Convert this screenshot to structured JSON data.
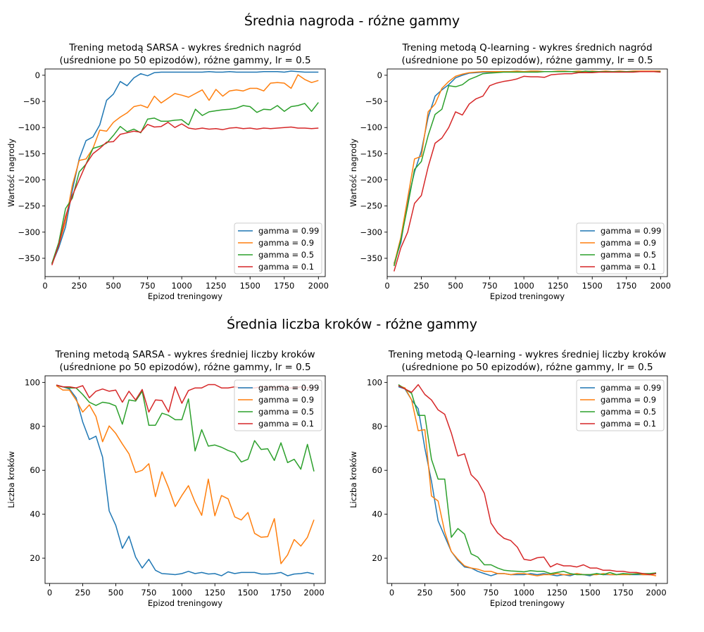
{
  "suptitles": {
    "rewards": "Średnia nagroda - różne gammy",
    "steps": "Średnia liczba kroków - różne gammy"
  },
  "chart_data": [
    {
      "type": "line",
      "title_line1": "Trening metodą SARSA - wykres średnich nagród",
      "title_line2": "(uśrednione po 50 epizodów), różne gammy, lr = 0.5",
      "xlabel": "Epizod treningowy",
      "ylabel": "Wartość nagrody",
      "xlim": [
        0,
        2050
      ],
      "ylim": [
        -385,
        12
      ],
      "xticks": [
        0,
        250,
        500,
        750,
        1000,
        1250,
        1500,
        1750,
        2000
      ],
      "yticks": [
        0,
        -50,
        -100,
        -150,
        -200,
        -250,
        -300,
        -350
      ],
      "legend": "bottom-right",
      "x": [
        50,
        100,
        150,
        200,
        250,
        300,
        350,
        400,
        450,
        500,
        550,
        600,
        650,
        700,
        750,
        800,
        850,
        900,
        950,
        1000,
        1050,
        1100,
        1150,
        1200,
        1250,
        1300,
        1350,
        1400,
        1450,
        1500,
        1550,
        1600,
        1650,
        1700,
        1750,
        1800,
        1850,
        1900,
        1950,
        2000
      ],
      "series": [
        {
          "name": "gamma = 0.99",
          "color": "#1f77b4",
          "values": [
            -361,
            -330,
            -290,
            -220,
            -160,
            -125,
            -118,
            -95,
            -48,
            -36,
            -12,
            -20,
            -5,
            3,
            -1,
            5,
            6,
            6,
            6,
            6,
            6,
            6,
            6,
            7,
            6,
            6,
            7,
            6,
            6,
            6,
            6,
            7,
            7,
            7,
            6,
            8,
            7,
            6,
            6,
            6
          ]
        },
        {
          "name": "gamma = 0.9",
          "color": "#ff7f0e",
          "values": [
            -360,
            -325,
            -280,
            -210,
            -163,
            -160,
            -140,
            -105,
            -107,
            -90,
            -80,
            -72,
            -60,
            -57,
            -62,
            -40,
            -53,
            -44,
            -35,
            -38,
            -42,
            -35,
            -28,
            -48,
            -27,
            -40,
            -30,
            -28,
            -30,
            -25,
            -25,
            -30,
            -15,
            -14,
            -15,
            -25,
            1,
            -8,
            -14,
            -10
          ]
        },
        {
          "name": "gamma = 0.5",
          "color": "#2ca02c",
          "values": [
            -360,
            -320,
            -255,
            -235,
            -185,
            -170,
            -140,
            -136,
            -130,
            -115,
            -98,
            -108,
            -103,
            -110,
            -84,
            -82,
            -88,
            -88,
            -86,
            -85,
            -95,
            -65,
            -77,
            -70,
            -68,
            -66,
            -65,
            -63,
            -58,
            -60,
            -71,
            -65,
            -66,
            -58,
            -69,
            -60,
            -58,
            -54,
            -69,
            -52
          ]
        },
        {
          "name": "gamma = 0.1",
          "color": "#d62728",
          "values": [
            -363,
            -325,
            -270,
            -230,
            -200,
            -170,
            -150,
            -140,
            -128,
            -127,
            -113,
            -110,
            -107,
            -109,
            -94,
            -99,
            -98,
            -90,
            -100,
            -93,
            -101,
            -103,
            -101,
            -103,
            -102,
            -104,
            -101,
            -100,
            -102,
            -101,
            -103,
            -101,
            -102,
            -101,
            -100,
            -99,
            -101,
            -101,
            -102,
            -101
          ]
        }
      ]
    },
    {
      "type": "line",
      "title_line1": "Trening metodą Q-learning - wykres średnich nagród",
      "title_line2": "(uśrednione po 50 epizodów), różne gammy, lr = 0.5",
      "xlabel": "Epizod treningowy",
      "ylabel": "Wartość nagrody",
      "xlim": [
        0,
        2050
      ],
      "ylim": [
        -385,
        12
      ],
      "xticks": [
        0,
        250,
        500,
        750,
        1000,
        1250,
        1500,
        1750,
        2000
      ],
      "yticks": [
        0,
        -50,
        -100,
        -150,
        -200,
        -250,
        -300,
        -350
      ],
      "legend": "bottom-right",
      "x": [
        50,
        100,
        150,
        200,
        250,
        300,
        350,
        400,
        450,
        500,
        550,
        600,
        650,
        700,
        750,
        800,
        850,
        900,
        950,
        1000,
        1050,
        1100,
        1150,
        1200,
        1250,
        1300,
        1350,
        1400,
        1450,
        1500,
        1550,
        1600,
        1650,
        1700,
        1750,
        1800,
        1850,
        1900,
        1950,
        2000
      ],
      "series": [
        {
          "name": "gamma = 0.99",
          "color": "#1f77b4",
          "values": [
            -360,
            -320,
            -240,
            -185,
            -145,
            -80,
            -40,
            -28,
            -18,
            -5,
            0,
            4,
            5,
            6,
            6,
            6,
            7,
            7,
            7,
            7,
            7,
            7,
            7,
            7,
            7,
            7,
            7,
            7,
            7,
            7,
            7,
            7,
            7,
            7,
            7,
            7,
            7,
            7,
            7,
            7
          ]
        },
        {
          "name": "gamma = 0.9",
          "color": "#ff7f0e",
          "values": [
            -362,
            -310,
            -235,
            -160,
            -155,
            -70,
            -55,
            -25,
            -12,
            -2,
            2,
            5,
            6,
            7,
            7,
            7,
            7,
            7,
            8,
            7,
            8,
            8,
            7,
            7,
            8,
            8,
            7,
            8,
            7,
            8,
            7,
            8,
            7,
            8,
            7,
            8,
            8,
            8,
            8,
            8
          ]
        },
        {
          "name": "gamma = 0.5",
          "color": "#2ca02c",
          "values": [
            -365,
            -315,
            -250,
            -180,
            -165,
            -115,
            -75,
            -65,
            -20,
            -22,
            -18,
            -8,
            -3,
            3,
            4,
            5,
            6,
            6,
            6,
            6,
            6,
            6,
            7,
            7,
            7,
            7,
            7,
            6,
            8,
            7,
            7,
            7,
            7,
            7,
            7,
            7,
            7,
            7,
            7,
            7
          ]
        },
        {
          "name": "gamma = 0.1",
          "color": "#d62728",
          "values": [
            -375,
            -330,
            -300,
            -245,
            -230,
            -175,
            -130,
            -120,
            -100,
            -70,
            -76,
            -55,
            -45,
            -40,
            -20,
            -15,
            -12,
            -10,
            -7,
            -2,
            -3,
            -3,
            -4,
            1,
            2,
            3,
            3,
            5,
            5,
            5,
            6,
            6,
            6,
            6,
            6,
            6,
            7,
            7,
            7,
            6
          ]
        }
      ]
    },
    {
      "type": "line",
      "title_line1": "Trening metodą SARSA - wykres średniej liczby kroków",
      "title_line2": "(uśrednione po 50 epizodów), różne gammy, lr = 0.5",
      "xlabel": "Epizod treningowy",
      "ylabel": "Liczba kroków",
      "xlim": [
        -35,
        2085
      ],
      "ylim": [
        8.5,
        103
      ],
      "xticks": [
        0,
        250,
        500,
        750,
        1000,
        1250,
        1500,
        1750,
        2000
      ],
      "yticks": [
        20,
        40,
        60,
        80,
        100
      ],
      "legend": "top-right",
      "x": [
        50,
        100,
        150,
        200,
        250,
        300,
        350,
        400,
        450,
        500,
        550,
        600,
        650,
        700,
        750,
        800,
        850,
        900,
        950,
        1000,
        1050,
        1100,
        1150,
        1200,
        1250,
        1300,
        1350,
        1400,
        1450,
        1500,
        1550,
        1600,
        1650,
        1700,
        1750,
        1800,
        1850,
        1900,
        1950,
        2000
      ],
      "series": [
        {
          "name": "gamma = 0.99",
          "color": "#1f77b4",
          "values": [
            98.5,
            98,
            97,
            93,
            82,
            74,
            75.5,
            66,
            41.5,
            35,
            24.5,
            30,
            20.5,
            15.5,
            19.5,
            14.5,
            13,
            12.8,
            12.5,
            13,
            14,
            13,
            13.5,
            12.8,
            13,
            12,
            13.8,
            13,
            13.5,
            13.5,
            13.5,
            12.8,
            12.8,
            13,
            13.5,
            12,
            12.8,
            13,
            13.5,
            12.8
          ]
        },
        {
          "name": "gamma = 0.9",
          "color": "#ff7f0e",
          "values": [
            98.5,
            96.5,
            96.5,
            92,
            86.5,
            89.8,
            84.5,
            73,
            80.2,
            76.8,
            72,
            67.5,
            59,
            60,
            63,
            48,
            59.3,
            52,
            43.5,
            48.5,
            53,
            45.5,
            39.5,
            56,
            39.3,
            48.5,
            47,
            38.8,
            37.4,
            40.8,
            31.3,
            29.5,
            29.8,
            38,
            17.5,
            21.5,
            28.5,
            25.5,
            29.5,
            37.5
          ]
        },
        {
          "name": "gamma = 0.5",
          "color": "#2ca02c",
          "values": [
            98.8,
            98,
            97.5,
            97.5,
            94.5,
            91,
            89.5,
            91,
            90.5,
            89.3,
            81,
            92,
            91.5,
            96,
            80.5,
            80.5,
            86,
            85,
            83,
            83,
            92.5,
            68.8,
            78.5,
            71,
            71.5,
            70.5,
            69,
            68,
            63.8,
            65,
            73.5,
            69.5,
            69.8,
            64.5,
            72.5,
            63.5,
            65,
            60.5,
            71.8,
            59.5
          ]
        },
        {
          "name": "gamma = 0.1",
          "color": "#d62728",
          "values": [
            98.8,
            98,
            98,
            97.5,
            98.5,
            93,
            96,
            97,
            96,
            96.5,
            91,
            96,
            92,
            96.8,
            86.5,
            92,
            91.8,
            86.5,
            98,
            90.5,
            96.3,
            97.5,
            97.5,
            99,
            99,
            97.5,
            97.5,
            98,
            97.5,
            97.5,
            97.5,
            98,
            98,
            97.5,
            98.5,
            97.5,
            97.5,
            98,
            97.5,
            97.5
          ]
        }
      ]
    },
    {
      "type": "line",
      "title_line1": "Trening metodą Q-learning - wykres średniej liczby kroków",
      "title_line2": "(uśrednione po 50 epizodów), różne gammy, lr = 0.5",
      "xlabel": "Epizod treningowy",
      "ylabel": "Liczba kroków",
      "xlim": [
        -35,
        2085
      ],
      "ylim": [
        8.5,
        103
      ],
      "xticks": [
        0,
        250,
        500,
        750,
        1000,
        1250,
        1500,
        1750,
        2000
      ],
      "yticks": [
        20,
        40,
        60,
        80,
        100
      ],
      "legend": "top-right",
      "x": [
        50,
        100,
        150,
        200,
        250,
        300,
        350,
        400,
        450,
        500,
        550,
        600,
        650,
        700,
        750,
        800,
        850,
        900,
        950,
        1000,
        1050,
        1100,
        1150,
        1200,
        1250,
        1300,
        1350,
        1400,
        1450,
        1500,
        1550,
        1600,
        1650,
        1700,
        1750,
        1800,
        1850,
        1900,
        1950,
        2000
      ],
      "series": [
        {
          "name": "gamma = 0.99",
          "color": "#1f77b4",
          "values": [
            98,
            97,
            92,
            88,
            70,
            55,
            37,
            30,
            23,
            19,
            16,
            15.5,
            14,
            13,
            12,
            13,
            13,
            12.5,
            12.5,
            12.5,
            13,
            12.5,
            13,
            12.5,
            12,
            12.5,
            12,
            13,
            12.5,
            12,
            13,
            12.5,
            12.5,
            12.5,
            13,
            12.5,
            12.5,
            12.5,
            12.5,
            13
          ]
        },
        {
          "name": "gamma = 0.9",
          "color": "#ff7f0e",
          "values": [
            98.5,
            97.5,
            92,
            78,
            78.5,
            48.3,
            46,
            32,
            23,
            19.5,
            16.5,
            15.5,
            15,
            14,
            14,
            13,
            13,
            12.5,
            13,
            13,
            12.5,
            12,
            12.5,
            12.5,
            13,
            12.5,
            12.5,
            13,
            12.5,
            12.5,
            12.5,
            13,
            12.5,
            12.5,
            12.5,
            12.5,
            13,
            12.5,
            12.5,
            12
          ]
        },
        {
          "name": "gamma = 0.5",
          "color": "#2ca02c",
          "values": [
            99,
            97,
            95,
            85,
            85,
            65,
            56,
            56,
            29.5,
            33.5,
            31,
            22,
            20.5,
            17,
            17,
            15.5,
            14.5,
            14.2,
            14,
            13.8,
            14.3,
            14,
            14,
            13,
            13.5,
            14,
            13,
            12.5,
            12.5,
            12.5,
            13,
            12.5,
            13.5,
            12.5,
            13,
            12.8,
            12.8,
            13,
            13,
            13.3
          ]
        },
        {
          "name": "gamma = 0.1",
          "color": "#d62728",
          "values": [
            98.5,
            97,
            95.5,
            99,
            94.5,
            92,
            87.5,
            85.5,
            77,
            66.5,
            67.5,
            58,
            55,
            49.5,
            36,
            31.5,
            29,
            28,
            25,
            19.5,
            19,
            20.2,
            20.5,
            16,
            17.5,
            16.5,
            16.5,
            16,
            17,
            15.5,
            15.5,
            14.5,
            14.5,
            14,
            14,
            13.5,
            13.5,
            13,
            12.5,
            13
          ]
        }
      ]
    }
  ]
}
